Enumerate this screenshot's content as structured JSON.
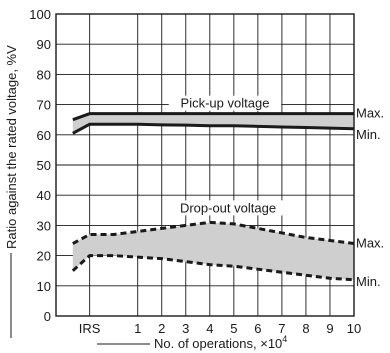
{
  "chart_data": {
    "type": "area",
    "title": "",
    "xlabel": "No. of operations, ×10",
    "xlabel_exp": "4",
    "ylabel": "Ratio against the rated voltage, %V",
    "ylim": [
      0,
      100
    ],
    "yticks": [
      "0",
      "10",
      "20",
      "30",
      "40",
      "50",
      "60",
      "70",
      "80",
      "90",
      "100"
    ],
    "categories": [
      "IRS",
      "1",
      "2",
      "3",
      "4",
      "5",
      "6",
      "7",
      "8",
      "9",
      "10"
    ],
    "grid": true,
    "bands": [
      {
        "label": "Pick-up voltage",
        "line_style": "solid",
        "fill": "#cfcfcf",
        "x": [
          -1.7,
          -1,
          0,
          1,
          2,
          3,
          4,
          5,
          6,
          7,
          8,
          9,
          10
        ],
        "upper": [
          65,
          67,
          67,
          67,
          67,
          67,
          67,
          67,
          67,
          67,
          67,
          67,
          67
        ],
        "lower": [
          60.5,
          63.5,
          63.5,
          63.5,
          63.3,
          63.2,
          63,
          63,
          62.8,
          62.6,
          62.4,
          62.2,
          62
        ],
        "upper_label": "Max.",
        "lower_label": "Min."
      },
      {
        "label": "Drop-out voltage",
        "line_style": "dashed",
        "fill": "#cfcfcf",
        "x": [
          -1.7,
          -1,
          0,
          1,
          2,
          3,
          4,
          5,
          6,
          7,
          8,
          9,
          10
        ],
        "upper": [
          24,
          27,
          27,
          28,
          29,
          30,
          31,
          30.5,
          29,
          27.5,
          26,
          25,
          24
        ],
        "lower": [
          15,
          20,
          20,
          19.5,
          19,
          18,
          17,
          16.5,
          15.5,
          14.5,
          13.5,
          12.5,
          12
        ],
        "upper_label": "Max.",
        "lower_label": "Min."
      }
    ]
  }
}
